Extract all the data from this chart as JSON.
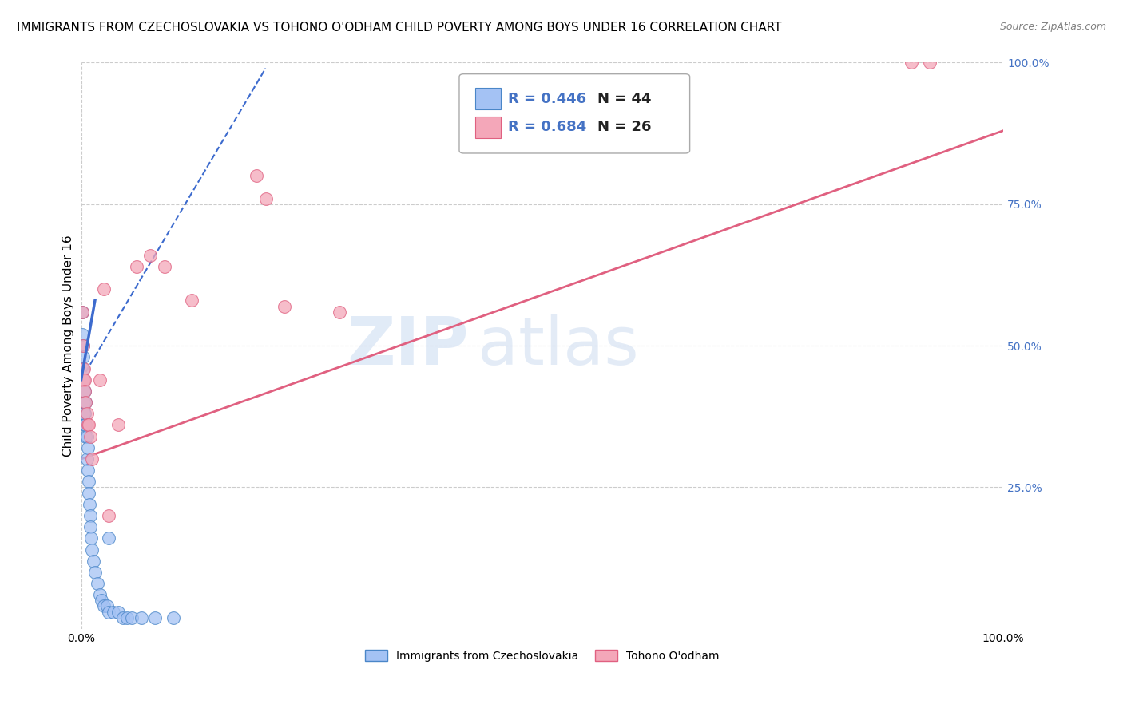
{
  "title": "IMMIGRANTS FROM CZECHOSLOVAKIA VS TOHONO O'ODHAM CHILD POVERTY AMONG BOYS UNDER 16 CORRELATION CHART",
  "source": "Source: ZipAtlas.com",
  "ylabel": "Child Poverty Among Boys Under 16",
  "xlim": [
    0.0,
    1.0
  ],
  "ylim": [
    0.0,
    1.0
  ],
  "grid_color": "#cccccc",
  "watermark_zip": "ZIP",
  "watermark_atlas": "atlas",
  "blue_color": "#a4c2f4",
  "blue_edge_color": "#4a86c8",
  "pink_color": "#f4a7b9",
  "pink_edge_color": "#e06080",
  "blue_line_color": "#3d6bce",
  "pink_line_color": "#e06080",
  "scatter_blue": [
    [
      0.001,
      0.56
    ],
    [
      0.001,
      0.52
    ],
    [
      0.002,
      0.5
    ],
    [
      0.002,
      0.48
    ],
    [
      0.002,
      0.46
    ],
    [
      0.002,
      0.44
    ],
    [
      0.003,
      0.44
    ],
    [
      0.003,
      0.42
    ],
    [
      0.003,
      0.4
    ],
    [
      0.003,
      0.38
    ],
    [
      0.004,
      0.42
    ],
    [
      0.004,
      0.38
    ],
    [
      0.004,
      0.36
    ],
    [
      0.005,
      0.4
    ],
    [
      0.005,
      0.36
    ],
    [
      0.005,
      0.34
    ],
    [
      0.006,
      0.34
    ],
    [
      0.006,
      0.3
    ],
    [
      0.007,
      0.32
    ],
    [
      0.007,
      0.28
    ],
    [
      0.008,
      0.26
    ],
    [
      0.008,
      0.24
    ],
    [
      0.009,
      0.22
    ],
    [
      0.01,
      0.2
    ],
    [
      0.01,
      0.18
    ],
    [
      0.011,
      0.16
    ],
    [
      0.012,
      0.14
    ],
    [
      0.013,
      0.12
    ],
    [
      0.015,
      0.1
    ],
    [
      0.018,
      0.08
    ],
    [
      0.02,
      0.06
    ],
    [
      0.022,
      0.05
    ],
    [
      0.025,
      0.04
    ],
    [
      0.028,
      0.04
    ],
    [
      0.03,
      0.03
    ],
    [
      0.035,
      0.03
    ],
    [
      0.04,
      0.03
    ],
    [
      0.045,
      0.02
    ],
    [
      0.05,
      0.02
    ],
    [
      0.055,
      0.02
    ],
    [
      0.065,
      0.02
    ],
    [
      0.08,
      0.02
    ],
    [
      0.1,
      0.02
    ],
    [
      0.03,
      0.16
    ]
  ],
  "scatter_pink": [
    [
      0.001,
      0.56
    ],
    [
      0.002,
      0.5
    ],
    [
      0.003,
      0.46
    ],
    [
      0.003,
      0.44
    ],
    [
      0.004,
      0.44
    ],
    [
      0.004,
      0.42
    ],
    [
      0.005,
      0.4
    ],
    [
      0.006,
      0.38
    ],
    [
      0.007,
      0.36
    ],
    [
      0.008,
      0.36
    ],
    [
      0.01,
      0.34
    ],
    [
      0.012,
      0.3
    ],
    [
      0.02,
      0.44
    ],
    [
      0.025,
      0.6
    ],
    [
      0.03,
      0.2
    ],
    [
      0.04,
      0.36
    ],
    [
      0.06,
      0.64
    ],
    [
      0.075,
      0.66
    ],
    [
      0.09,
      0.64
    ],
    [
      0.12,
      0.58
    ],
    [
      0.2,
      0.76
    ],
    [
      0.22,
      0.57
    ],
    [
      0.28,
      0.56
    ],
    [
      0.19,
      0.8
    ],
    [
      0.9,
      1.0
    ],
    [
      0.92,
      1.0
    ]
  ],
  "blue_trendline_x": [
    0.0,
    0.2
  ],
  "blue_trendline_y": [
    0.44,
    0.99
  ],
  "pink_trendline_x": [
    0.0,
    1.0
  ],
  "pink_trendline_y": [
    0.3,
    0.88
  ],
  "title_fontsize": 11,
  "axis_label_fontsize": 11,
  "tick_fontsize": 10,
  "legend_R1": "R = 0.446",
  "legend_N1": "N = 44",
  "legend_R2": "R = 0.684",
  "legend_N2": "N = 26"
}
